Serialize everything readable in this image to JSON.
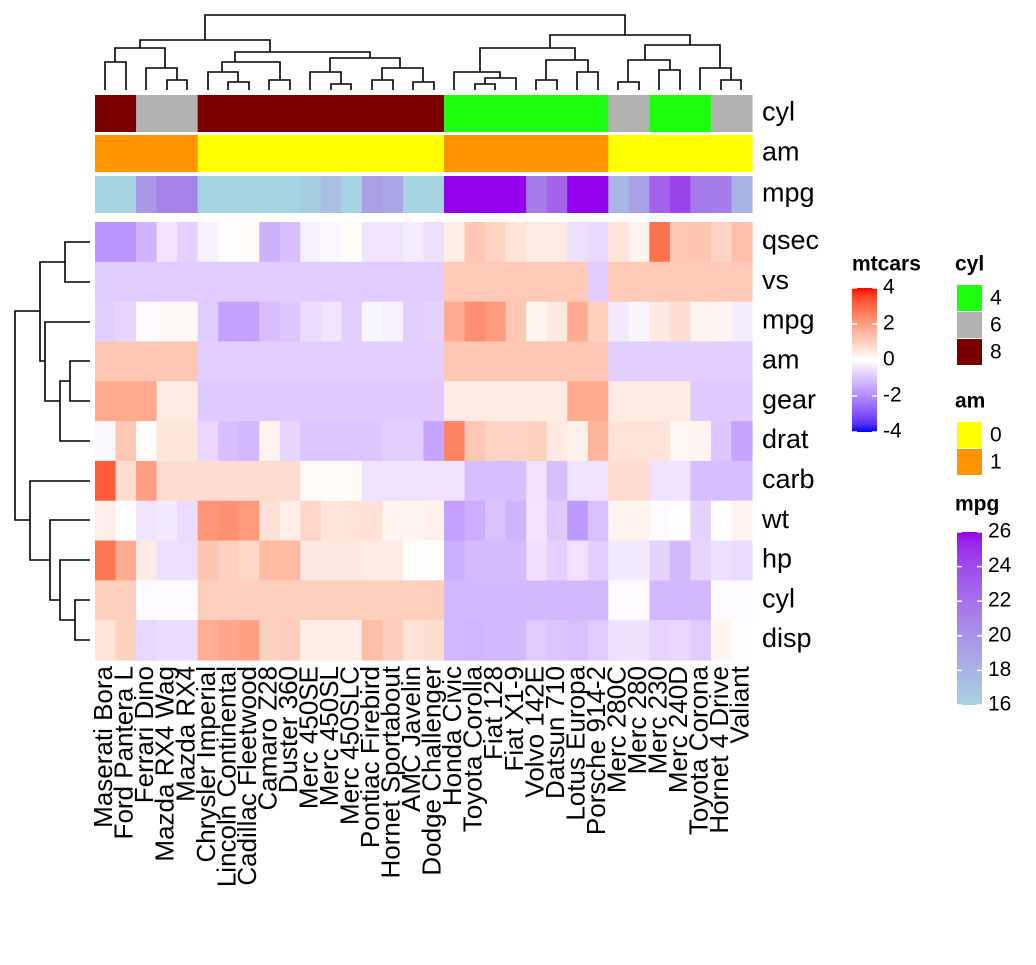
{
  "chart_data": {
    "type": "heatmap",
    "rows": [
      "qsec",
      "vs",
      "mpg",
      "am",
      "gear",
      "drat",
      "carb",
      "wt",
      "hp",
      "cyl",
      "disp"
    ],
    "columns": [
      "Maserati Bora",
      "Ford Pantera L",
      "Ferrari Dino",
      "Mazda RX4 Wag",
      "Mazda RX4",
      "Chrysler Imperial",
      "Lincoln Continental",
      "Cadillac Fleetwood",
      "Camaro Z28",
      "Duster 360",
      "Merc 450SE",
      "Merc 450SL",
      "Merc 450SLC",
      "Pontiac Firebird",
      "Hornet Sportabout",
      "AMC Javelin",
      "Dodge Challenger",
      "Honda Civic",
      "Toyota Corolla",
      "Fiat 128",
      "Fiat X1-9",
      "Volvo 142E",
      "Datsun 710",
      "Lotus Europa",
      "Porsche 914-2",
      "Merc 280C",
      "Merc 280",
      "Merc 230",
      "Merc 240D",
      "Toyota Corona",
      "Hornet 4 Drive",
      "Valiant"
    ],
    "values": [
      [
        -1.82,
        -1.87,
        -1.31,
        -0.46,
        -0.78,
        -0.24,
        -0.02,
        0.07,
        -1.36,
        -1.12,
        -0.25,
        -0.14,
        0.08,
        -0.45,
        -0.46,
        -0.31,
        -0.55,
        0.38,
        1.15,
        0.91,
        0.59,
        0.42,
        0.43,
        -0.53,
        -0.64,
        0.59,
        0.25,
        2.83,
        1.2,
        1.21,
        0.89,
        1.33
      ],
      [
        -0.87,
        -0.87,
        -0.87,
        -0.87,
        -0.87,
        -0.87,
        -0.87,
        -0.87,
        -0.87,
        -0.87,
        -0.87,
        -0.87,
        -0.87,
        -0.87,
        -0.87,
        -0.87,
        -0.87,
        1.12,
        1.12,
        1.12,
        1.12,
        1.12,
        1.12,
        1.12,
        -0.87,
        1.12,
        1.12,
        1.12,
        1.12,
        1.12,
        1.12,
        1.12
      ],
      [
        -0.84,
        -0.71,
        -0.06,
        0.15,
        0.15,
        -0.89,
        -1.61,
        -1.61,
        -1.13,
        -0.96,
        -0.61,
        -0.46,
        -0.81,
        -0.15,
        -0.23,
        -0.81,
        -0.76,
        1.71,
        2.29,
        2.04,
        1.2,
        0.22,
        0.45,
        1.71,
        0.98,
        -0.38,
        -0.15,
        0.45,
        0.72,
        0.23,
        0.22,
        -0.33
      ],
      [
        1.19,
        1.19,
        1.19,
        1.19,
        1.19,
        -0.81,
        -0.81,
        -0.81,
        -0.81,
        -0.81,
        -0.81,
        -0.81,
        -0.81,
        -0.81,
        -0.81,
        -0.81,
        -0.81,
        1.19,
        1.19,
        1.19,
        1.19,
        1.19,
        1.19,
        1.19,
        1.19,
        -0.81,
        -0.81,
        -0.81,
        -0.81,
        -0.81,
        -0.81,
        -0.81
      ],
      [
        1.78,
        1.78,
        1.78,
        0.42,
        0.42,
        -0.93,
        -0.93,
        -0.93,
        -0.93,
        -0.93,
        -0.93,
        -0.93,
        -0.93,
        -0.93,
        -0.93,
        -0.93,
        -0.93,
        0.42,
        0.42,
        0.42,
        0.42,
        0.42,
        0.42,
        1.78,
        1.78,
        0.42,
        0.42,
        0.42,
        0.42,
        -0.93,
        -0.93,
        -0.93
      ],
      [
        -0.11,
        1.17,
        0.04,
        0.57,
        0.57,
        -0.69,
        -1.12,
        -1.25,
        0.25,
        -0.72,
        -0.98,
        -0.98,
        -0.98,
        -0.97,
        -0.84,
        -0.84,
        -1.56,
        2.49,
        1.17,
        0.9,
        0.9,
        0.96,
        0.47,
        0.32,
        1.56,
        0.6,
        0.6,
        0.6,
        0.17,
        0.19,
        -0.97,
        -1.56
      ],
      [
        3.21,
        0.74,
        1.97,
        0.74,
        0.74,
        0.74,
        0.74,
        0.74,
        0.74,
        0.74,
        0.12,
        0.12,
        0.12,
        -0.5,
        -0.5,
        -0.5,
        -0.5,
        -0.5,
        -1.12,
        -1.12,
        -1.12,
        -0.5,
        -1.12,
        -0.5,
        -0.5,
        0.74,
        0.74,
        -0.5,
        -0.5,
        -1.12,
        -1.12,
        -1.12
      ],
      [
        0.36,
        -0.05,
        -0.46,
        -0.35,
        -0.61,
        2.17,
        2.26,
        2.08,
        0.64,
        0.36,
        0.87,
        0.52,
        0.58,
        0.64,
        0.23,
        0.22,
        0.31,
        -1.64,
        -1.41,
        -1.04,
        -1.31,
        -0.45,
        -0.92,
        -1.74,
        -1.1,
        0.23,
        0.23,
        -0.07,
        -0.03,
        -0.77,
        0.0,
        0.25
      ],
      [
        2.75,
        1.71,
        0.41,
        -0.54,
        -0.54,
        1.21,
        1.0,
        0.85,
        1.43,
        1.43,
        0.49,
        0.49,
        0.49,
        0.41,
        0.41,
        0.05,
        0.05,
        -1.38,
        -1.19,
        -1.18,
        -1.18,
        -0.55,
        -0.78,
        -0.49,
        -0.81,
        -0.35,
        -0.35,
        -0.75,
        -1.24,
        -0.72,
        -0.54,
        -0.61
      ],
      [
        1.01,
        1.01,
        -0.1,
        -0.1,
        -0.1,
        1.01,
        1.01,
        1.01,
        1.01,
        1.01,
        1.01,
        1.01,
        1.01,
        1.01,
        1.01,
        1.01,
        1.01,
        -1.22,
        -1.22,
        -1.22,
        -1.22,
        -1.22,
        -1.22,
        -1.22,
        -1.22,
        -0.1,
        -0.1,
        -1.22,
        -1.22,
        -1.22,
        -0.1,
        -0.1
      ],
      [
        0.57,
        0.97,
        -0.69,
        -0.57,
        -0.57,
        1.69,
        1.85,
        1.95,
        0.96,
        1.04,
        0.36,
        0.36,
        0.36,
        1.37,
        1.04,
        0.59,
        0.7,
        -1.25,
        -1.29,
        -1.23,
        -1.22,
        -0.89,
        -0.99,
        -1.09,
        -0.89,
        -0.51,
        -0.51,
        -0.73,
        -0.68,
        -0.89,
        0.22,
        -0.05
      ]
    ],
    "colorbar": {
      "title": "mtcars",
      "lim": [
        -4,
        4
      ],
      "ticks": [
        4,
        2,
        0,
        -2,
        -4
      ],
      "colors": [
        "#0000ff",
        "#ffffff",
        "#ff0000"
      ]
    },
    "annotations": [
      {
        "name": "cyl",
        "values": [
          8,
          8,
          6,
          6,
          6,
          8,
          8,
          8,
          8,
          8,
          8,
          8,
          8,
          8,
          8,
          8,
          8,
          4,
          4,
          4,
          4,
          4,
          4,
          4,
          4,
          6,
          6,
          4,
          4,
          4,
          6,
          6
        ],
        "levels": [
          4,
          6,
          8
        ],
        "colors": [
          "#1eff10",
          "#b2b2b2",
          "#7a0000"
        ]
      },
      {
        "name": "am",
        "values": [
          1,
          1,
          1,
          1,
          1,
          0,
          0,
          0,
          0,
          0,
          0,
          0,
          0,
          0,
          0,
          0,
          0,
          1,
          1,
          1,
          1,
          1,
          1,
          1,
          1,
          0,
          0,
          0,
          0,
          0,
          0,
          0
        ],
        "levels": [
          0,
          1
        ],
        "colors": [
          "#ffff00",
          "#ff9400"
        ]
      },
      {
        "name": "mpg",
        "values": [
          15.0,
          15.8,
          19.7,
          21.0,
          21.0,
          14.7,
          10.4,
          10.4,
          13.3,
          14.3,
          16.4,
          17.3,
          15.2,
          19.2,
          18.7,
          15.2,
          15.5,
          30.4,
          33.9,
          32.4,
          27.3,
          21.4,
          22.8,
          30.4,
          26.0,
          17.8,
          19.2,
          22.8,
          24.4,
          21.5,
          21.4,
          18.1
        ],
        "lim": [
          16,
          26
        ],
        "ticks": [
          26,
          24,
          22,
          20,
          18,
          16
        ],
        "colors": [
          "#a6d3e1",
          "#9400ec"
        ]
      }
    ]
  }
}
